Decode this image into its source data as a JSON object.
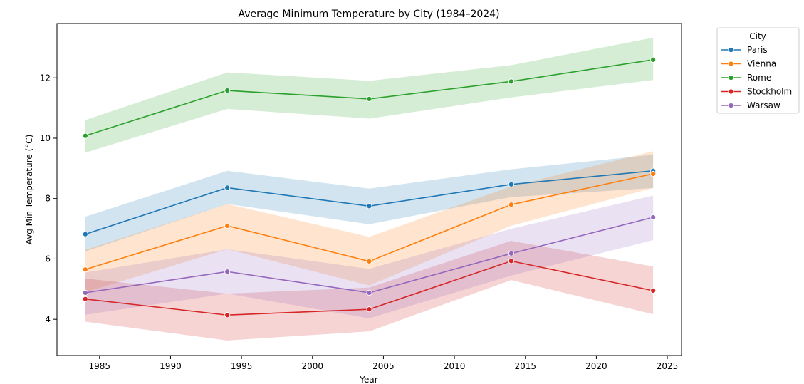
{
  "chart_data": {
    "type": "line",
    "title": "Average Minimum Temperature by City (1984–2024)",
    "xlabel": "Year",
    "ylabel": "Avg Min Temperature (°C)",
    "xlim": [
      1982,
      2026
    ],
    "ylim": [
      2.8,
      13.8
    ],
    "xticks": [
      1985,
      1990,
      1995,
      2000,
      2005,
      2010,
      2015,
      2020,
      2025
    ],
    "yticks": [
      4,
      6,
      8,
      10,
      12
    ],
    "x": [
      1984,
      1994,
      2004,
      2014,
      2024
    ],
    "grid": false,
    "legend": {
      "title": "City",
      "placement": "outside-top-right"
    },
    "series": [
      {
        "name": "Paris",
        "color": "#1f77b4",
        "values": [
          6.82,
          8.36,
          7.75,
          8.47,
          8.92
        ],
        "lower": [
          6.25,
          7.82,
          7.15,
          8.05,
          8.35
        ],
        "upper": [
          7.4,
          8.92,
          8.33,
          8.97,
          9.45
        ]
      },
      {
        "name": "Vienna",
        "color": "#ff7f0e",
        "values": [
          5.65,
          7.1,
          5.92,
          7.8,
          8.82
        ],
        "lower": [
          4.9,
          6.32,
          5.12,
          7.1,
          8.35
        ],
        "upper": [
          6.3,
          7.82,
          6.73,
          8.4,
          9.57
        ]
      },
      {
        "name": "Rome",
        "color": "#2ca02c",
        "values": [
          10.08,
          11.58,
          11.3,
          11.88,
          12.6
        ],
        "lower": [
          9.52,
          10.97,
          10.65,
          11.35,
          11.93
        ],
        "upper": [
          10.6,
          12.18,
          11.9,
          12.42,
          13.33
        ]
      },
      {
        "name": "Stockholm",
        "color": "#d62728",
        "values": [
          4.67,
          4.14,
          4.33,
          5.93,
          4.95
        ],
        "lower": [
          3.92,
          3.3,
          3.6,
          5.3,
          4.17
        ],
        "upper": [
          5.35,
          4.85,
          5.05,
          6.6,
          5.75
        ]
      },
      {
        "name": "Warsaw",
        "color": "#9467bd",
        "values": [
          4.88,
          5.58,
          4.88,
          6.18,
          7.38
        ],
        "lower": [
          4.15,
          4.85,
          4.03,
          5.45,
          6.62
        ],
        "upper": [
          5.55,
          6.32,
          5.67,
          7.0,
          8.1
        ]
      }
    ]
  }
}
